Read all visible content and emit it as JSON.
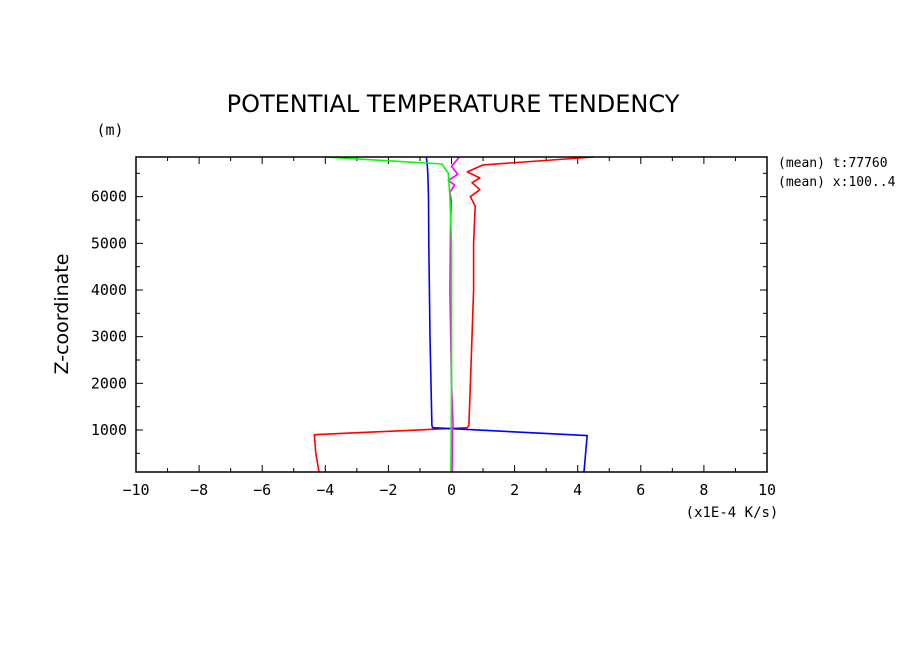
{
  "chart_data": {
    "type": "line",
    "title": "POTENTIAL TEMPERATURE TENDENCY",
    "xlabel": "(x1E-4 K/s)",
    "ylabel": "Z-coordinate",
    "yunit": "(m)",
    "xlim": [
      -10,
      10
    ],
    "ylim": [
      100,
      6850
    ],
    "xticks": [
      -10,
      -8,
      -6,
      -4,
      -2,
      0,
      2,
      4,
      6,
      8,
      10
    ],
    "xtick_labels": [
      "-10",
      "-8",
      "-6",
      "-4",
      "-2",
      "0",
      "2",
      "4",
      "6",
      "8",
      "10"
    ],
    "yticks": [
      1000,
      2000,
      3000,
      4000,
      5000,
      6000
    ],
    "ytick_labels": [
      "1000",
      "2000",
      "3000",
      "4000",
      "5000",
      "6000"
    ],
    "grid": false,
    "annotations": [
      "(mean) t:77760",
      "(mean) x:100..4"
    ],
    "series": [
      {
        "color": "#ff0000",
        "x": [
          -4.2,
          -4.3,
          -4.35,
          0.5,
          0.55,
          0.6,
          0.65,
          0.7,
          0.7,
          0.75,
          0.6,
          0.9,
          0.65,
          0.9,
          0.5,
          1.0,
          4.5
        ],
        "y": [
          100,
          500,
          900,
          1050,
          1100,
          2000,
          3000,
          4000,
          5000,
          5800,
          6000,
          6150,
          6300,
          6400,
          6530,
          6680,
          6850
        ]
      },
      {
        "color": "#0000ff",
        "x": [
          4.2,
          4.25,
          4.3,
          -0.6,
          -0.62,
          -0.65,
          -0.68,
          -0.7,
          -0.72,
          -0.73,
          -0.75,
          -0.77,
          -0.8
        ],
        "y": [
          100,
          500,
          880,
          1050,
          1100,
          2000,
          3000,
          4000,
          5000,
          6000,
          6500,
          6700,
          6850
        ]
      },
      {
        "color": "#ff00ff",
        "x": [
          0.02,
          0.03,
          0.05,
          0.0,
          -0.05,
          -0.03,
          0.0,
          -0.05,
          0.1,
          -0.1,
          0.2,
          0.0,
          0.25
        ],
        "y": [
          100,
          1000,
          1100,
          2000,
          4000,
          5500,
          5900,
          6100,
          6250,
          6350,
          6480,
          6650,
          6850
        ]
      },
      {
        "color": "#00ff00",
        "x": [
          -0.02,
          -0.01,
          0.0,
          0.0,
          0.0,
          0.0,
          -0.05,
          -0.1,
          -0.3,
          -4.0
        ],
        "y": [
          100,
          1000,
          2000,
          3000,
          4000,
          5000,
          6000,
          6500,
          6700,
          6850
        ]
      }
    ]
  }
}
